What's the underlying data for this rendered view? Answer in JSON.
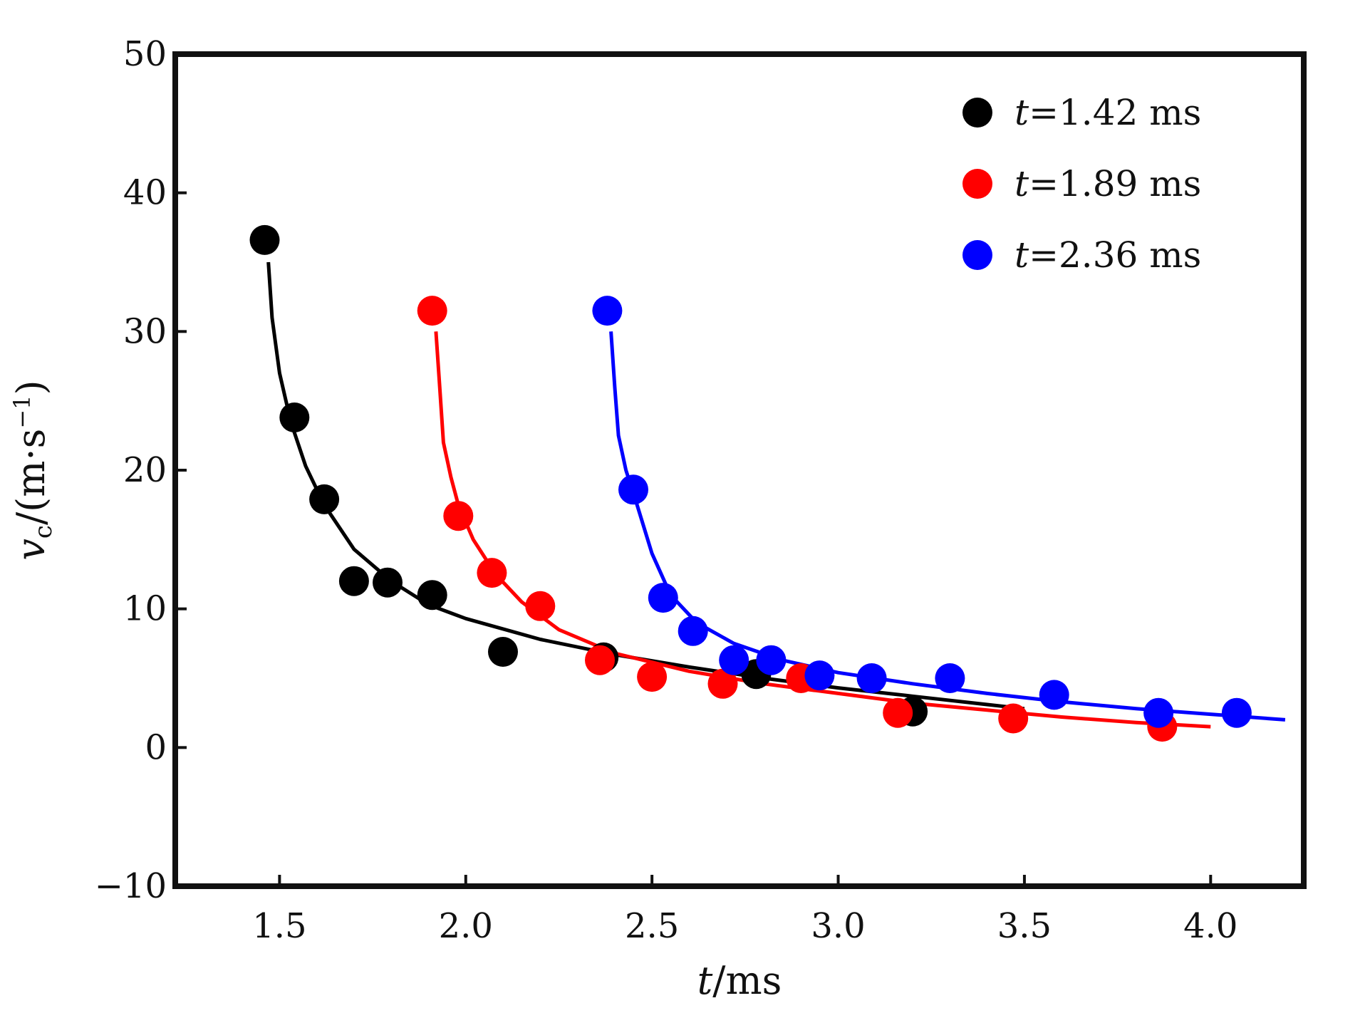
{
  "chart_data": {
    "type": "scatter",
    "xlabel": {
      "var": "t",
      "unit": "/ms"
    },
    "ylabel": {
      "var": "v",
      "sub": "c",
      "unit": "/(m·s",
      "sup": "−1",
      "close": ")"
    },
    "xlim": [
      1.22,
      4.25
    ],
    "ylim": [
      -10,
      50
    ],
    "xticks": [
      1.5,
      2.0,
      2.5,
      3.0,
      3.5,
      4.0
    ],
    "xtick_labels": [
      "1.5",
      "2.0",
      "2.5",
      "3.0",
      "3.5",
      "4.0"
    ],
    "yticks": [
      -10,
      0,
      10,
      20,
      30,
      40,
      50
    ],
    "ytick_labels": [
      "−10",
      "0",
      "10",
      "20",
      "30",
      "40",
      "50"
    ],
    "grid": false,
    "legend_position": "top-right",
    "series": [
      {
        "legend_var": "t",
        "legend_value": "=1.42 ms",
        "color": "#000000",
        "points": [
          [
            1.46,
            36.6
          ],
          [
            1.54,
            23.8
          ],
          [
            1.62,
            17.9
          ],
          [
            1.7,
            12.0
          ],
          [
            1.79,
            11.9
          ],
          [
            1.91,
            11.0
          ],
          [
            2.1,
            6.9
          ],
          [
            2.37,
            6.5
          ],
          [
            2.78,
            5.3
          ],
          [
            3.2,
            2.6
          ]
        ],
        "fit": [
          [
            1.47,
            35.0
          ],
          [
            1.48,
            31.0
          ],
          [
            1.5,
            27.0
          ],
          [
            1.53,
            23.5
          ],
          [
            1.57,
            20.3
          ],
          [
            1.62,
            17.5
          ],
          [
            1.7,
            14.3
          ],
          [
            1.8,
            12.0
          ],
          [
            1.9,
            10.3
          ],
          [
            2.0,
            9.3
          ],
          [
            2.2,
            7.8
          ],
          [
            2.4,
            6.7
          ],
          [
            2.6,
            5.8
          ],
          [
            2.8,
            5.0
          ],
          [
            3.0,
            4.3
          ],
          [
            3.2,
            3.7
          ],
          [
            3.4,
            3.1
          ],
          [
            3.5,
            2.8
          ]
        ]
      },
      {
        "legend_var": "t",
        "legend_value": "=1.89 ms",
        "color": "#ff0000",
        "points": [
          [
            1.91,
            31.5
          ],
          [
            1.98,
            16.7
          ],
          [
            2.07,
            12.6
          ],
          [
            2.2,
            10.2
          ],
          [
            2.36,
            6.3
          ],
          [
            2.5,
            5.1
          ],
          [
            2.69,
            4.6
          ],
          [
            2.9,
            5.0
          ],
          [
            3.16,
            2.5
          ],
          [
            3.47,
            2.1
          ],
          [
            3.87,
            1.5
          ]
        ],
        "fit": [
          [
            1.92,
            30.0
          ],
          [
            1.93,
            26.0
          ],
          [
            1.94,
            22.0
          ],
          [
            1.96,
            19.5
          ],
          [
            1.98,
            17.5
          ],
          [
            2.02,
            15.0
          ],
          [
            2.08,
            12.5
          ],
          [
            2.15,
            10.5
          ],
          [
            2.25,
            8.5
          ],
          [
            2.4,
            6.8
          ],
          [
            2.6,
            5.5
          ],
          [
            2.8,
            4.6
          ],
          [
            3.0,
            3.9
          ],
          [
            3.2,
            3.2
          ],
          [
            3.4,
            2.7
          ],
          [
            3.6,
            2.2
          ],
          [
            3.8,
            1.8
          ],
          [
            4.0,
            1.5
          ]
        ]
      },
      {
        "legend_var": "t",
        "legend_value": "=2.36 ms",
        "color": "#0000ff",
        "points": [
          [
            2.38,
            31.5
          ],
          [
            2.45,
            18.6
          ],
          [
            2.53,
            10.8
          ],
          [
            2.61,
            8.4
          ],
          [
            2.72,
            6.3
          ],
          [
            2.82,
            6.3
          ],
          [
            2.95,
            5.2
          ],
          [
            3.09,
            5.0
          ],
          [
            3.3,
            5.0
          ],
          [
            3.58,
            3.8
          ],
          [
            3.86,
            2.5
          ],
          [
            4.07,
            2.5
          ]
        ],
        "fit": [
          [
            2.39,
            30.0
          ],
          [
            2.4,
            26.0
          ],
          [
            2.41,
            22.5
          ],
          [
            2.43,
            20.0
          ],
          [
            2.46,
            17.5
          ],
          [
            2.5,
            14.0
          ],
          [
            2.55,
            11.0
          ],
          [
            2.62,
            9.0
          ],
          [
            2.72,
            7.5
          ],
          [
            2.85,
            6.3
          ],
          [
            3.0,
            5.4
          ],
          [
            3.2,
            4.6
          ],
          [
            3.4,
            3.9
          ],
          [
            3.6,
            3.3
          ],
          [
            3.8,
            2.8
          ],
          [
            4.0,
            2.4
          ],
          [
            4.2,
            2.0
          ]
        ]
      }
    ]
  }
}
